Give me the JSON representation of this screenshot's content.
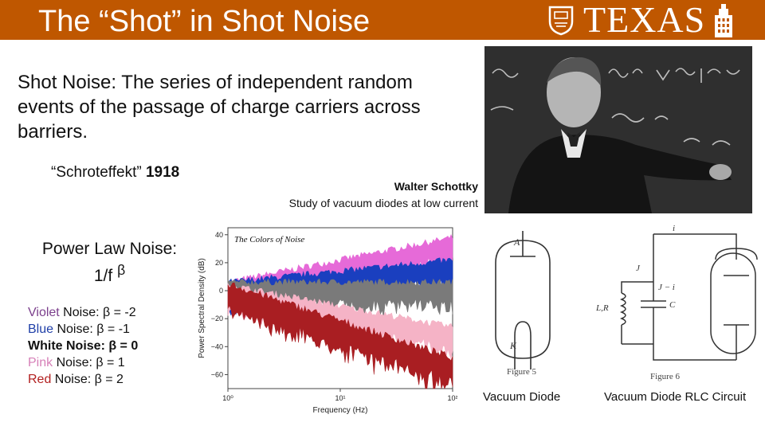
{
  "header": {
    "title": "The “Shot” in Shot Noise",
    "logo_text": "TEXAS",
    "colors": {
      "burnt_orange": "#bf5700"
    }
  },
  "definition": "Shot Noise: The series of independent random events of the  passage of charge carriers across barriers.",
  "schroteffekt": {
    "term": "“Schroteffekt”",
    "year": "1918"
  },
  "photo_caption": {
    "name": "Walter Schottky",
    "description": "Study of vacuum diodes at low current"
  },
  "power_law": {
    "line1": "Power Law Noise:",
    "line2": "1/f",
    "exponent": "β"
  },
  "noise_types": [
    {
      "color_word": "Violet",
      "rest": " Noise: β = -2",
      "color": "#7b3f8c",
      "bold": false
    },
    {
      "color_word": "Blue",
      "rest": " Noise: β = -1",
      "color": "#1f3fa8",
      "bold": false
    },
    {
      "color_word": "White",
      "rest": " Noise: β = 0",
      "color": "#111111",
      "bold": true
    },
    {
      "color_word": "Pink",
      "rest": " Noise: β = 1",
      "color": "#d680b8",
      "bold": false
    },
    {
      "color_word": "Red",
      "rest": " Noise: β = 2",
      "color": "#b21f1f",
      "bold": false
    }
  ],
  "chart_data": {
    "type": "area",
    "title": "The Colors of Noise",
    "xlabel": "Frequency (Hz)",
    "ylabel": "Power Spectral Density (dB)",
    "x_scale": "log",
    "xlim": [
      1,
      100
    ],
    "ylim": [
      -70,
      45
    ],
    "x_ticks": [
      "10⁰",
      "10¹",
      "10²"
    ],
    "y_ticks": [
      40,
      20,
      0,
      -20,
      -40,
      -60
    ],
    "y_tick_labels": [
      "40",
      "20",
      "0",
      "−20",
      "−40",
      "−60"
    ],
    "series": [
      {
        "color": "#e66ad8",
        "x": [
          1,
          100
        ],
        "y_mid": [
          0,
          32
        ],
        "spread": 6
      },
      {
        "color": "#1a3fbf",
        "x": [
          1,
          100
        ],
        "y_mid": [
          0,
          16
        ],
        "spread": 6
      },
      {
        "color": "#7a7a7a",
        "x": [
          1,
          100
        ],
        "y_mid": [
          0,
          0
        ],
        "spread": 6
      },
      {
        "color": "#f5b3c6",
        "x": [
          1,
          100
        ],
        "y_mid": [
          -2,
          -32
        ],
        "spread": 6
      },
      {
        "color": "#a91e22",
        "x": [
          1,
          100
        ],
        "y_mid": [
          -2,
          -55
        ],
        "spread": 7
      }
    ]
  },
  "figures": {
    "diode": {
      "label_a": "A",
      "label_k": "K",
      "figure": "Figure 5",
      "caption": "Vacuum Diode"
    },
    "rlc": {
      "label_i": "i",
      "label_j": "J",
      "label_ji": "J − i",
      "label_lr": "L,R",
      "label_c": "C",
      "figure": "Figure 6",
      "caption": "Vacuum Diode RLC Circuit"
    }
  }
}
